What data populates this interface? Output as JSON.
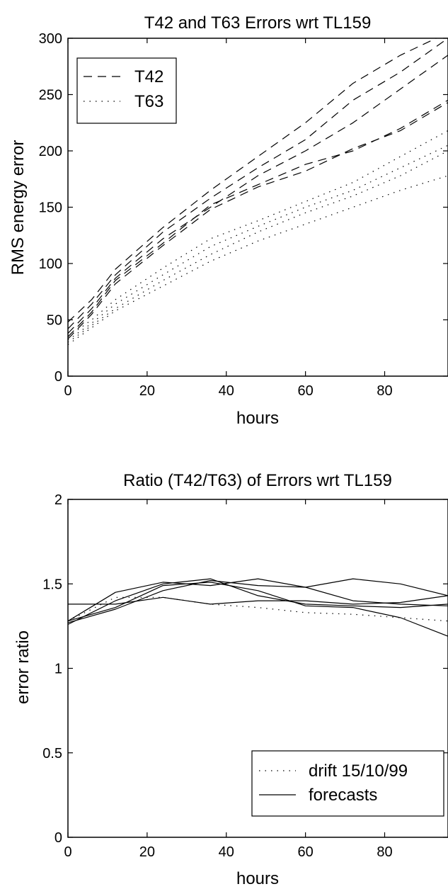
{
  "chart_data": [
    {
      "type": "line",
      "title": "T42 and T63 Errors wrt TL159",
      "xlabel": "hours",
      "ylabel": "RMS energy error",
      "xlim": [
        0,
        96
      ],
      "ylim": [
        0,
        300
      ],
      "xticks": [
        "0",
        "20",
        "40",
        "60",
        "80"
      ],
      "yticks": [
        "0",
        "50",
        "100",
        "150",
        "200",
        "250",
        "300"
      ],
      "legend_position": "top-left",
      "legend": [
        {
          "label": "T42",
          "style": "dashed"
        },
        {
          "label": "T63",
          "style": "dotted"
        }
      ],
      "series": [
        {
          "name": "T42",
          "style": "dashed",
          "x": [
            0,
            6,
            12,
            24,
            36,
            48,
            60,
            72,
            84,
            96
          ],
          "y": [
            48,
            68,
            95,
            132,
            165,
            195,
            225,
            260,
            285,
            305
          ]
        },
        {
          "name": "T42",
          "style": "dashed",
          "x": [
            0,
            6,
            12,
            24,
            36,
            48,
            60,
            72,
            84,
            96
          ],
          "y": [
            42,
            64,
            90,
            128,
            158,
            185,
            210,
            245,
            270,
            300
          ]
        },
        {
          "name": "T42",
          "style": "dashed",
          "x": [
            0,
            6,
            12,
            24,
            36,
            48,
            60,
            72,
            84,
            96
          ],
          "y": [
            38,
            60,
            87,
            122,
            150,
            178,
            200,
            225,
            255,
            285
          ]
        },
        {
          "name": "T42",
          "style": "dashed",
          "x": [
            0,
            6,
            12,
            24,
            36,
            48,
            60,
            72,
            84,
            96
          ],
          "y": [
            35,
            57,
            85,
            118,
            152,
            170,
            188,
            200,
            220,
            245
          ]
        },
        {
          "name": "T42",
          "style": "dashed",
          "x": [
            0,
            6,
            12,
            24,
            36,
            48,
            60,
            72,
            84,
            96
          ],
          "y": [
            33,
            55,
            82,
            116,
            148,
            168,
            182,
            202,
            218,
            243
          ]
        },
        {
          "name": "T63",
          "style": "dotted",
          "x": [
            0,
            6,
            12,
            24,
            36,
            48,
            60,
            72,
            84,
            96
          ],
          "y": [
            35,
            50,
            68,
            96,
            122,
            138,
            155,
            172,
            195,
            218
          ]
        },
        {
          "name": "T63",
          "style": "dotted",
          "x": [
            0,
            6,
            12,
            24,
            36,
            48,
            60,
            72,
            84,
            96
          ],
          "y": [
            32,
            47,
            64,
            90,
            115,
            133,
            150,
            165,
            185,
            205
          ]
        },
        {
          "name": "T63",
          "style": "dotted",
          "x": [
            0,
            6,
            12,
            24,
            36,
            48,
            60,
            72,
            84,
            96
          ],
          "y": [
            30,
            45,
            60,
            85,
            108,
            128,
            145,
            160,
            178,
            200
          ]
        },
        {
          "name": "T63",
          "style": "dotted",
          "x": [
            0,
            6,
            12,
            24,
            36,
            48,
            60,
            72,
            84,
            96
          ],
          "y": [
            28,
            43,
            58,
            80,
            102,
            120,
            135,
            150,
            165,
            178
          ]
        }
      ]
    },
    {
      "type": "line",
      "title": "Ratio (T42/T63) of Errors wrt TL159",
      "xlabel": "hours",
      "ylabel": "error ratio",
      "xlim": [
        0,
        96
      ],
      "ylim": [
        0,
        2
      ],
      "xticks": [
        "0",
        "20",
        "40",
        "60",
        "80"
      ],
      "yticks": [
        "0",
        "0.5",
        "1",
        "1.5",
        "2"
      ],
      "legend_position": "bottom-right",
      "legend": [
        {
          "label": "drift 15/10/99",
          "style": "dotted"
        },
        {
          "label": "forecasts",
          "style": "solid"
        }
      ],
      "series": [
        {
          "name": "drift 15/10/99",
          "style": "dotted",
          "x": [
            0,
            12,
            24,
            36,
            48,
            60,
            72,
            84,
            96
          ],
          "y": [
            1.28,
            1.42,
            1.42,
            1.38,
            1.36,
            1.33,
            1.32,
            1.3,
            1.28
          ]
        },
        {
          "name": "forecasts",
          "style": "solid",
          "x": [
            0,
            12,
            24,
            36,
            48,
            60,
            72,
            84,
            96
          ],
          "y": [
            1.38,
            1.38,
            1.42,
            1.38,
            1.4,
            1.4,
            1.38,
            1.39,
            1.43
          ]
        },
        {
          "name": "forecasts",
          "style": "solid",
          "x": [
            0,
            12,
            24,
            36,
            48,
            60,
            72,
            84,
            96
          ],
          "y": [
            1.28,
            1.45,
            1.51,
            1.49,
            1.53,
            1.48,
            1.53,
            1.5,
            1.43
          ]
        },
        {
          "name": "forecasts",
          "style": "solid",
          "x": [
            0,
            12,
            24,
            36,
            48,
            60,
            72,
            84,
            96
          ],
          "y": [
            1.27,
            1.35,
            1.46,
            1.52,
            1.49,
            1.48,
            1.4,
            1.38,
            1.37
          ]
        },
        {
          "name": "forecasts",
          "style": "solid",
          "x": [
            0,
            12,
            24,
            36,
            48,
            60,
            72,
            84,
            96
          ],
          "y": [
            1.28,
            1.36,
            1.49,
            1.51,
            1.46,
            1.37,
            1.36,
            1.3,
            1.19
          ]
        },
        {
          "name": "forecasts",
          "style": "solid",
          "x": [
            0,
            12,
            24,
            36,
            48,
            60,
            72,
            84,
            96
          ],
          "y": [
            1.26,
            1.4,
            1.5,
            1.53,
            1.43,
            1.38,
            1.37,
            1.36,
            1.38
          ]
        }
      ]
    }
  ]
}
